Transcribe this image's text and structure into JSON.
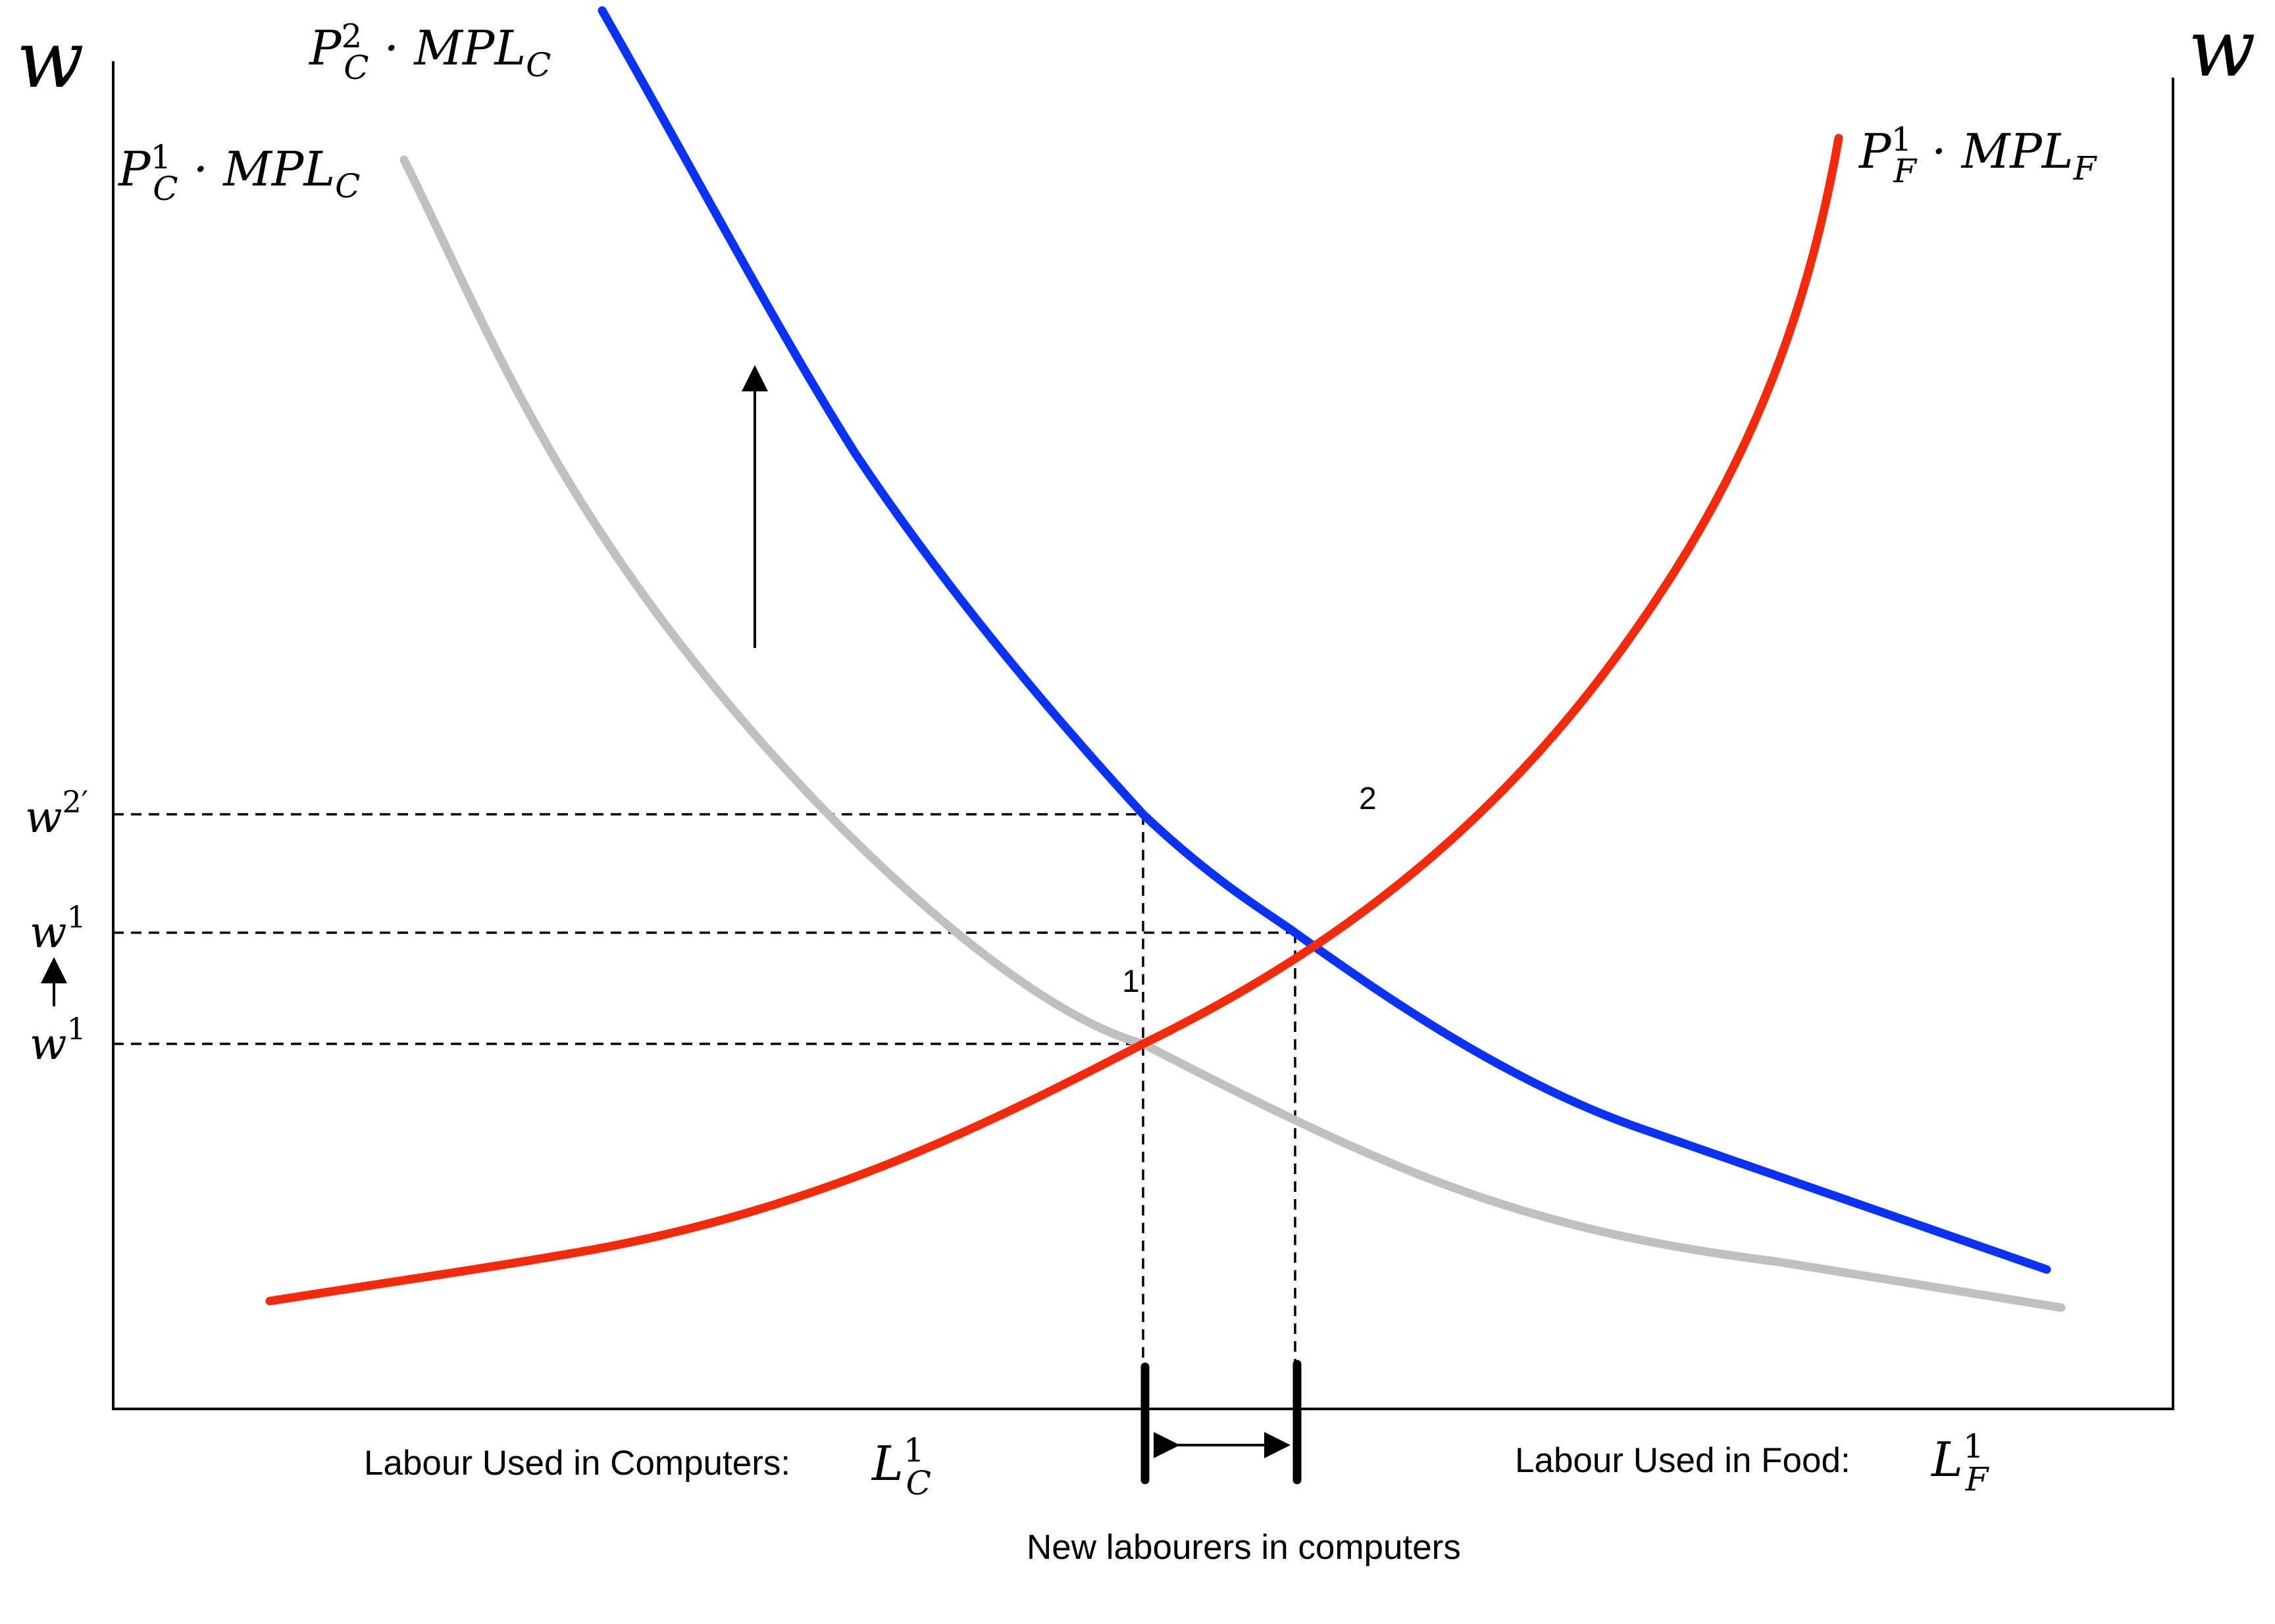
{
  "axes": {
    "left_label": "w",
    "right_label": "w"
  },
  "curves": {
    "computers_initial": {
      "label": {
        "base": "P",
        "sup": "1",
        "sub": "C",
        "rest": " · MPL",
        "rest_sub": "C"
      },
      "color": "#c0c0c0"
    },
    "computers_new": {
      "label": {
        "base": "P",
        "sup": "2",
        "sub": "C",
        "rest": " · MPL",
        "rest_sub": "C"
      },
      "color": "#0a32f5"
    },
    "food": {
      "label": {
        "base": "P",
        "sup": "1",
        "sub": "F",
        "rest": " · MPL",
        "rest_sub": "F"
      },
      "color": "#f52a0a"
    }
  },
  "wage_levels": [
    {
      "base": "w",
      "sup": "2′"
    },
    {
      "base": "w",
      "sup": "1"
    },
    {
      "base": "w",
      "sup": "1"
    }
  ],
  "points": {
    "one": "1",
    "two": "2"
  },
  "x_labels": {
    "computers_text": "Labour Used in Computers:",
    "computers_sym": {
      "base": "L",
      "sup": "1",
      "sub": "C"
    },
    "food_text": "Labour Used in Food:",
    "food_sym": {
      "base": "L",
      "sup": "1",
      "sub": "F"
    },
    "new_labourers": "New labourers in computers"
  }
}
